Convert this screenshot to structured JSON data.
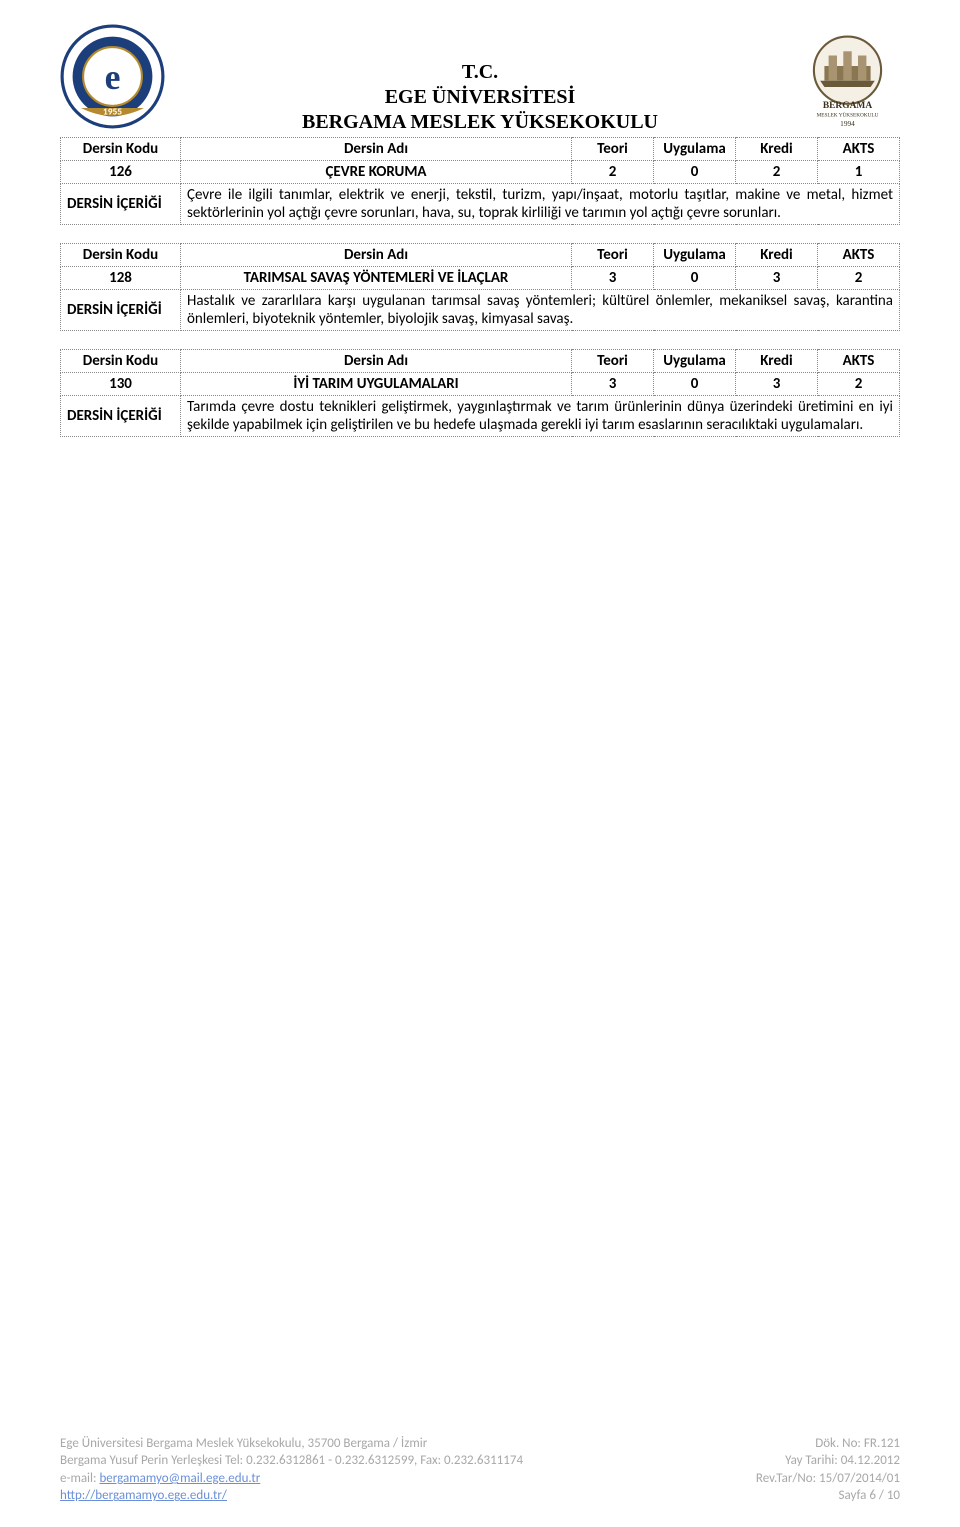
{
  "header": {
    "line1": "T.C.",
    "line2": "EGE ÜNİVERSİTESİ",
    "line3": "BERGAMA MESLEK YÜKSEKOKULU",
    "left_logo_year": "1955",
    "right_logo_label_top": "BERGAMA",
    "right_logo_label_bottom": "MESLEK YÜKSEKOKULU",
    "right_logo_year": "1994"
  },
  "columns": {
    "code": "Dersin Kodu",
    "name": "Dersin Adı",
    "teori": "Teori",
    "uygulama": "Uygulama",
    "kredi": "Kredi",
    "akts": "AKTS",
    "content_label": "DERSİN İÇERİĞİ"
  },
  "courses": [
    {
      "code": "126",
      "name": "ÇEVRE KORUMA",
      "teori": "2",
      "uygulama": "0",
      "kredi": "2",
      "akts": "1",
      "desc": "Çevre ile ilgili tanımlar, elektrik ve enerji, tekstil, turizm, yapı/inşaat, motorlu taşıtlar, makine ve metal, hizmet sektörlerinin yol açtığı çevre sorunları, hava, su, toprak kirliliği ve tarımın yol açtığı çevre sorunları."
    },
    {
      "code": "128",
      "name": "TARIMSAL SAVAŞ YÖNTEMLERİ VE İLAÇLAR",
      "teori": "3",
      "uygulama": "0",
      "kredi": "3",
      "akts": "2",
      "desc": "Hastalık ve zararlılara karşı uygulanan tarımsal savaş yöntemleri; kültürel önlemler, mekaniksel savaş, karantina önlemleri, biyoteknik yöntemler, biyolojik savaş, kimyasal savaş."
    },
    {
      "code": "130",
      "name": "İYİ TARIM UYGULAMALARI",
      "teori": "3",
      "uygulama": "0",
      "kredi": "3",
      "akts": "2",
      "desc": "Tarımda çevre dostu teknikleri geliştirmek, yaygınlaştırmak ve tarım ürünlerinin dünya üzerindeki üretimini en iyi şekilde yapabilmek için geliştirilen ve bu hedefe ulaşmada gerekli iyi tarım esaslarının seracılıktaki uygulamaları."
    }
  ],
  "footer": {
    "addr": "Ege Üniversitesi Bergama Meslek Yüksekokulu, 35700 Bergama / İzmir",
    "tel": "Bergama Yusuf Perin Yerleşkesi Tel: 0.232.6312861 - 0.232.6312599, Fax: 0.232.6311174",
    "email_label": "e-mail: ",
    "email": "bergamamyo@mail.ege.edu.tr",
    "url": "http://bergamamyo.ege.edu.tr/",
    "dok": "Dök. No: FR.121",
    "yay": "Yay Tarihi: 04.12.2012",
    "rev": "Rev.Tar/No: 15/07/2014/01",
    "page": "Sayfa 6 / 10"
  }
}
